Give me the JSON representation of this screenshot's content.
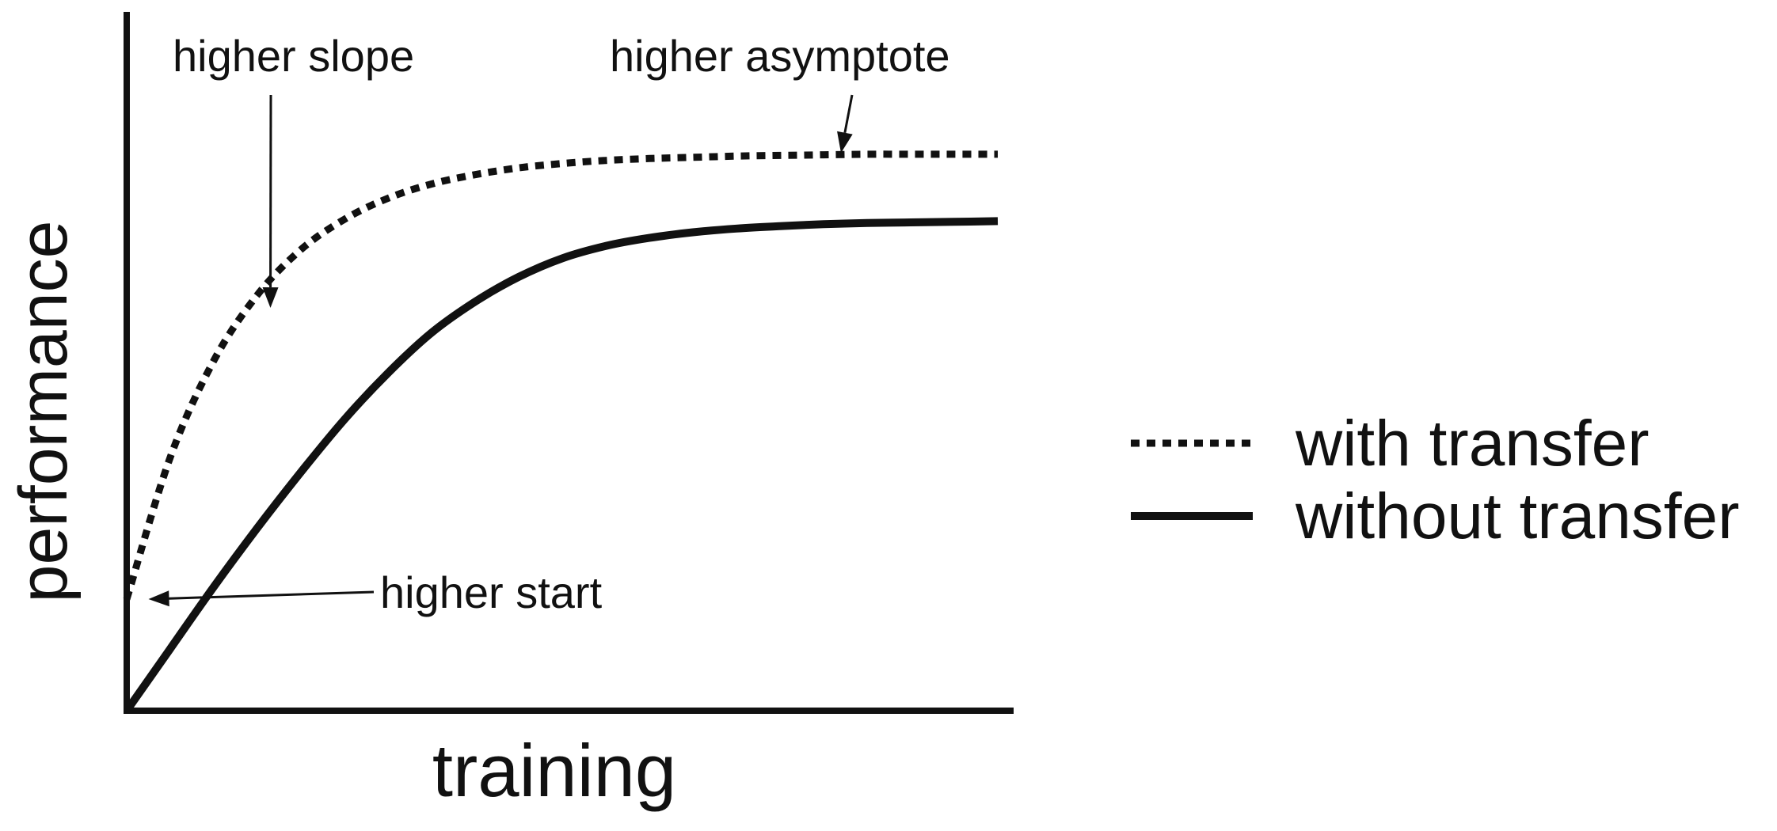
{
  "chart_data": {
    "type": "line",
    "title": "",
    "xlabel": "training",
    "ylabel": "performance",
    "xlim": [
      0,
      1
    ],
    "ylim": [
      0,
      1
    ],
    "grid": false,
    "legend_position": "right",
    "series": [
      {
        "name": "with transfer",
        "style": "dotted",
        "color": "#111111",
        "x": [
          0.0,
          0.05,
          0.1,
          0.15,
          0.2,
          0.25,
          0.3,
          0.35,
          0.4,
          0.45,
          0.5,
          0.55,
          0.6,
          0.65,
          0.7,
          0.75,
          0.8,
          0.85,
          0.9,
          0.95,
          1.0
        ],
        "values": [
          0.18,
          0.409,
          0.565,
          0.671,
          0.744,
          0.793,
          0.827,
          0.85,
          0.865,
          0.876,
          0.883,
          0.888,
          0.891,
          0.893,
          0.895,
          0.896,
          0.897,
          0.898,
          0.898,
          0.898,
          0.898
        ]
      },
      {
        "name": "without transfer",
        "style": "solid",
        "color": "#111111",
        "x": [
          0.0,
          0.05,
          0.1,
          0.15,
          0.2,
          0.25,
          0.3,
          0.35,
          0.4,
          0.45,
          0.5,
          0.55,
          0.6,
          0.65,
          0.7,
          0.75,
          0.8,
          0.85,
          0.9,
          0.95,
          1.0
        ],
        "values": [
          0.0,
          0.1,
          0.2,
          0.295,
          0.385,
          0.47,
          0.545,
          0.61,
          0.66,
          0.7,
          0.73,
          0.75,
          0.763,
          0.772,
          0.778,
          0.782,
          0.785,
          0.787,
          0.788,
          0.789,
          0.79
        ]
      }
    ],
    "annotations": [
      {
        "text": "higher slope",
        "target": {
          "x": 0.165,
          "y": 0.65
        }
      },
      {
        "text": "higher asymptote",
        "target": {
          "x": 0.82,
          "y": 0.9
        }
      },
      {
        "text": "higher start",
        "target": {
          "x": 0.025,
          "y": 0.18
        }
      }
    ]
  }
}
